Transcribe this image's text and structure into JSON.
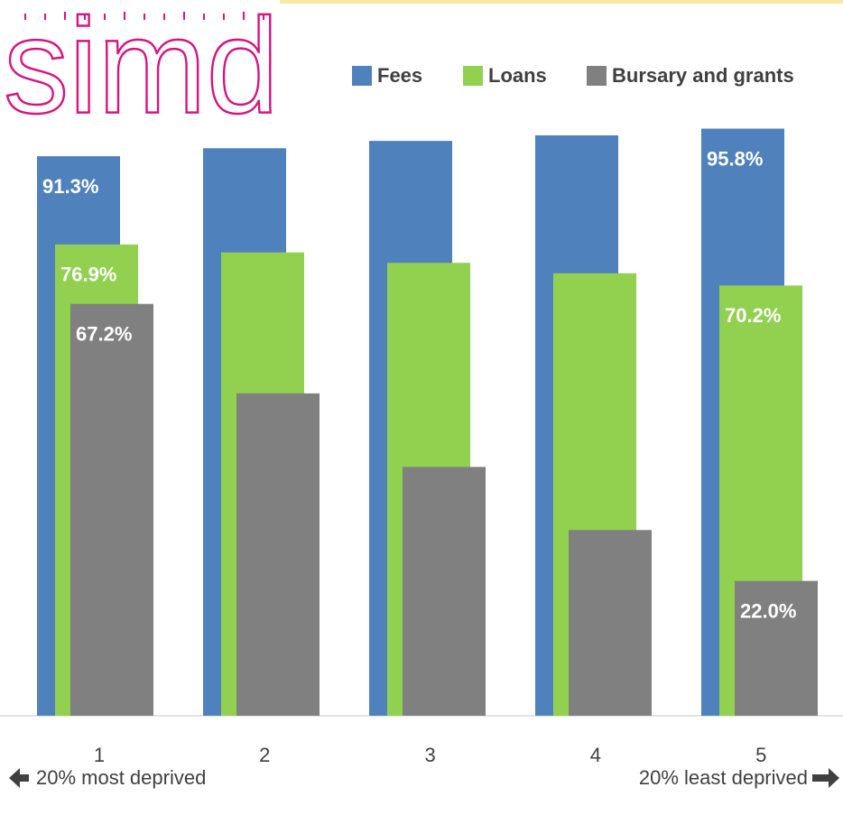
{
  "logo": "simd",
  "chart_data": {
    "type": "bar",
    "categories": [
      "1",
      "2",
      "3",
      "4",
      "5"
    ],
    "series": [
      {
        "name": "Fees",
        "color": "#4f81bd",
        "values": [
          91.3,
          92.6,
          93.8,
          94.7,
          95.8
        ],
        "value_labels": [
          "91.3%",
          null,
          null,
          null,
          "95.8%"
        ]
      },
      {
        "name": "Loans",
        "color": "#92d050",
        "values": [
          76.9,
          75.6,
          73.9,
          72.2,
          70.2
        ],
        "value_labels": [
          "76.9%",
          null,
          null,
          null,
          "70.2%"
        ]
      },
      {
        "name": "Bursary and grants",
        "color": "#808080",
        "values": [
          67.2,
          52.6,
          40.6,
          30.3,
          22.0
        ],
        "value_labels": [
          "67.2%",
          null,
          null,
          null,
          "22.0%"
        ]
      }
    ],
    "ylim": [
      0,
      100
    ],
    "annotations": [
      "20% most deprived",
      "20% least deprived"
    ]
  }
}
